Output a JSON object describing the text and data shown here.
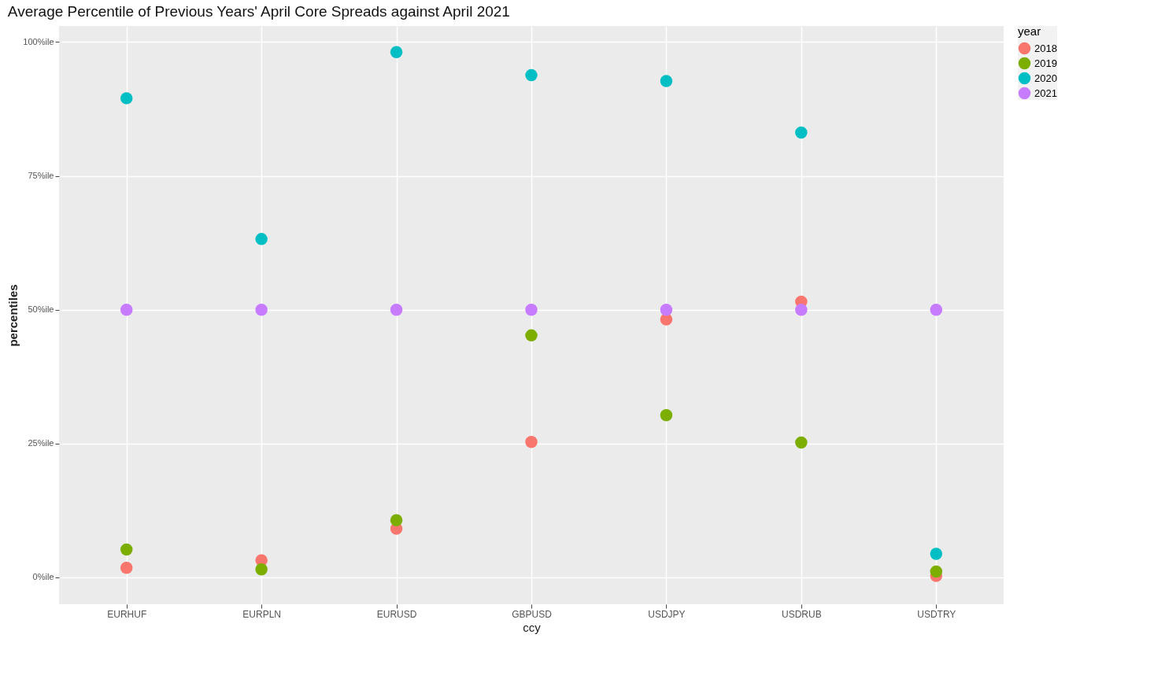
{
  "chart_data": {
    "type": "scatter",
    "title": "Average Percentile of Previous Years' April Core Spreads against April 2021",
    "xlabel": "ccy",
    "ylabel": "percentiles",
    "legend_title": "year",
    "categories": [
      "EURHUF",
      "EURPLN",
      "EURUSD",
      "GBPUSD",
      "USDJPY",
      "USDRUB",
      "USDTRY"
    ],
    "series": [
      {
        "name": "2018",
        "color": "#f8766d",
        "values": [
          1.8,
          3.2,
          9.1,
          25.3,
          48.2,
          51.5,
          0.3
        ]
      },
      {
        "name": "2019",
        "color": "#7cae00",
        "values": [
          5.2,
          1.5,
          10.7,
          45.2,
          30.3,
          25.2,
          1.1
        ]
      },
      {
        "name": "2020",
        "color": "#00bfc4",
        "values": [
          89.5,
          63.2,
          98.1,
          93.8,
          92.7,
          83.1,
          4.4
        ]
      },
      {
        "name": "2021",
        "color": "#c77cff",
        "values": [
          50,
          50,
          50,
          50,
          50,
          50,
          50
        ]
      }
    ],
    "ylim": [
      -5,
      103
    ],
    "yticks": [
      {
        "value": 0,
        "label": "0%ile"
      },
      {
        "value": 25,
        "label": "25%ile"
      },
      {
        "value": 50,
        "label": "50%ile"
      },
      {
        "value": 75,
        "label": "75%ile"
      },
      {
        "value": 100,
        "label": "100%ile"
      }
    ],
    "grid": true,
    "legend": "right",
    "marker": "circle"
  }
}
